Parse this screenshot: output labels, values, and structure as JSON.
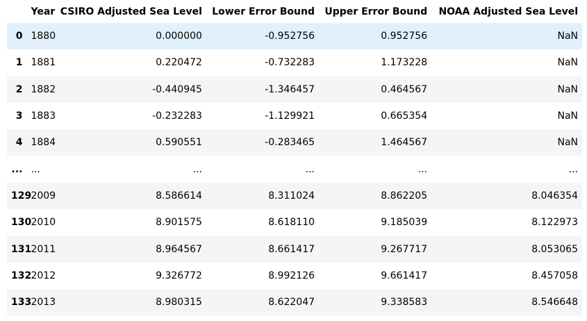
{
  "columns": {
    "index": "",
    "year": "Year",
    "csiro": "CSIRO Adjusted Sea Level",
    "lower": "Lower Error Bound",
    "upper": "Upper Error Bound",
    "noaa": "NOAA Adjusted Sea Level"
  },
  "rows": [
    {
      "index": "0",
      "year": "1880",
      "csiro": "0.000000",
      "lower": "-0.952756",
      "upper": "0.952756",
      "noaa": "NaN"
    },
    {
      "index": "1",
      "year": "1881",
      "csiro": "0.220472",
      "lower": "-0.732283",
      "upper": "1.173228",
      "noaa": "NaN"
    },
    {
      "index": "2",
      "year": "1882",
      "csiro": "-0.440945",
      "lower": "-1.346457",
      "upper": "0.464567",
      "noaa": "NaN"
    },
    {
      "index": "3",
      "year": "1883",
      "csiro": "-0.232283",
      "lower": "-1.129921",
      "upper": "0.665354",
      "noaa": "NaN"
    },
    {
      "index": "4",
      "year": "1884",
      "csiro": "0.590551",
      "lower": "-0.283465",
      "upper": "1.464567",
      "noaa": "NaN"
    },
    {
      "index": "...",
      "year": "...",
      "csiro": "...",
      "lower": "...",
      "upper": "...",
      "noaa": "..."
    },
    {
      "index": "129",
      "year": "2009",
      "csiro": "8.586614",
      "lower": "8.311024",
      "upper": "8.862205",
      "noaa": "8.046354"
    },
    {
      "index": "130",
      "year": "2010",
      "csiro": "8.901575",
      "lower": "8.618110",
      "upper": "9.185039",
      "noaa": "8.122973"
    },
    {
      "index": "131",
      "year": "2011",
      "csiro": "8.964567",
      "lower": "8.661417",
      "upper": "9.267717",
      "noaa": "8.053065"
    },
    {
      "index": "132",
      "year": "2012",
      "csiro": "9.326772",
      "lower": "8.992126",
      "upper": "9.661417",
      "noaa": "8.457058"
    },
    {
      "index": "133",
      "year": "2013",
      "csiro": "8.980315",
      "lower": "8.622047",
      "upper": "9.338583",
      "noaa": "8.546648"
    }
  ],
  "colors": {
    "hover_row": "#e1f0fb",
    "striped_row": "#f5f5f5",
    "background": "#ffffff"
  }
}
